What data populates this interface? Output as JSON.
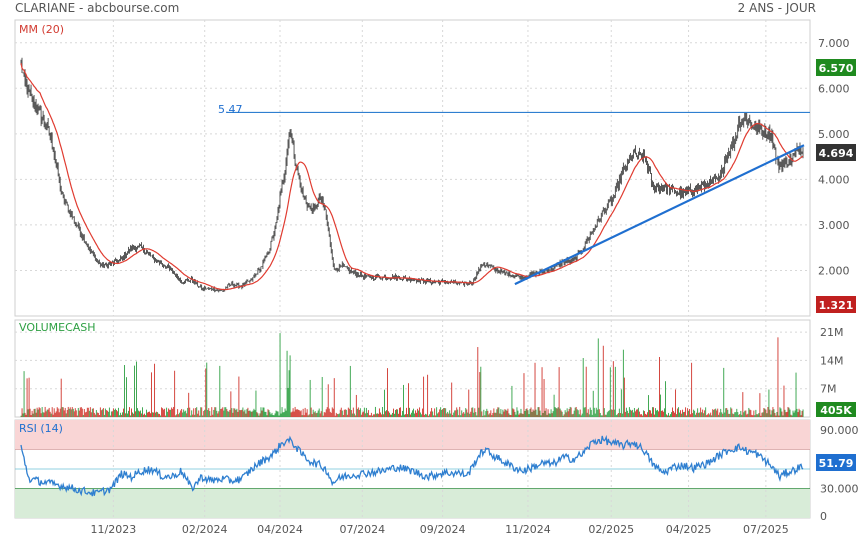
{
  "header": {
    "title": "CLARIANE - abcbourse.com",
    "period": "2 ANS - JOUR"
  },
  "colors": {
    "price": "#111111",
    "ma": "#e03c31",
    "support_line": "#1f6fd0",
    "resistance_line": "#2f7fd0",
    "rsi": "#2f7fd0",
    "vol_up": "#2ea043",
    "vol_down": "#d0342c",
    "rsi_over": "#f9d5d5",
    "rsi_under": "#d8ecd8",
    "badge_high": "#1f8a1f",
    "badge_low": "#c0201f",
    "badge_last": "#333333",
    "badge_rsi": "#1f6fd0"
  },
  "chart_data": [
    {
      "type": "candlestick",
      "panel": "price",
      "legend": "MM (20)",
      "ylim": [
        1.0,
        7.5
      ],
      "y_ticks": [
        "7.000",
        "6.000",
        "5.000",
        "4.000",
        "3.000",
        "2.000"
      ],
      "x_ticks": [
        "11/2023",
        "02/2024",
        "04/2024",
        "07/2024",
        "09/2024",
        "11/2024",
        "02/2025",
        "04/2025",
        "07/2025"
      ],
      "resistance": {
        "value": 5.47,
        "label": "5.47"
      },
      "trendline": {
        "from": [
          "02/2025 (approx.)",
          1.7
        ],
        "to": [
          "08/2025",
          4.75
        ]
      },
      "badges": {
        "high": "6.570",
        "last": "4.694",
        "low": "1.321"
      },
      "price_keypoints": [
        [
          0,
          6.5
        ],
        [
          4,
          6.1
        ],
        [
          12,
          5.7
        ],
        [
          25,
          5.2
        ],
        [
          32,
          4.7
        ],
        [
          40,
          3.7
        ],
        [
          48,
          3.3
        ],
        [
          58,
          2.9
        ],
        [
          68,
          2.45
        ],
        [
          80,
          2.1
        ],
        [
          90,
          2.15
        ],
        [
          100,
          2.25
        ],
        [
          110,
          2.5
        ],
        [
          120,
          2.5
        ],
        [
          130,
          2.3
        ],
        [
          140,
          2.15
        ],
        [
          150,
          2.0
        ],
        [
          160,
          1.75
        ],
        [
          170,
          1.8
        ],
        [
          180,
          1.6
        ],
        [
          190,
          1.6
        ],
        [
          200,
          1.55
        ],
        [
          210,
          1.7
        ],
        [
          220,
          1.65
        ],
        [
          230,
          1.8
        ],
        [
          240,
          2.1
        ],
        [
          248,
          2.5
        ],
        [
          254,
          3.0
        ],
        [
          258,
          3.6
        ],
        [
          262,
          4.1
        ],
        [
          265,
          4.6
        ],
        [
          268,
          5.2
        ],
        [
          270,
          4.8
        ],
        [
          275,
          4.2
        ],
        [
          280,
          3.7
        ],
        [
          286,
          3.4
        ],
        [
          292,
          3.3
        ],
        [
          298,
          3.6
        ],
        [
          303,
          3.3
        ],
        [
          308,
          2.6
        ],
        [
          312,
          2.0
        ],
        [
          320,
          2.1
        ],
        [
          330,
          1.95
        ],
        [
          345,
          1.85
        ],
        [
          360,
          1.85
        ],
        [
          375,
          1.85
        ],
        [
          390,
          1.8
        ],
        [
          410,
          1.75
        ],
        [
          425,
          1.75
        ],
        [
          440,
          1.7
        ],
        [
          450,
          1.75
        ],
        [
          460,
          2.15
        ],
        [
          470,
          2.05
        ],
        [
          480,
          1.95
        ],
        [
          500,
          1.85
        ],
        [
          515,
          1.95
        ],
        [
          530,
          2.05
        ],
        [
          540,
          2.2
        ],
        [
          550,
          2.2
        ],
        [
          560,
          2.5
        ],
        [
          570,
          2.9
        ],
        [
          580,
          3.3
        ],
        [
          590,
          3.6
        ],
        [
          600,
          4.2
        ],
        [
          610,
          4.55
        ],
        [
          622,
          4.45
        ],
        [
          630,
          3.8
        ],
        [
          640,
          3.85
        ],
        [
          650,
          3.75
        ],
        [
          660,
          3.7
        ],
        [
          672,
          3.8
        ],
        [
          684,
          3.9
        ],
        [
          696,
          4.0
        ],
        [
          702,
          4.5
        ],
        [
          710,
          4.8
        ],
        [
          716,
          5.3
        ],
        [
          722,
          5.35
        ],
        [
          730,
          5.15
        ],
        [
          740,
          5.05
        ],
        [
          748,
          4.95
        ],
        [
          754,
          4.3
        ],
        [
          760,
          4.35
        ],
        [
          768,
          4.45
        ],
        [
          776,
          4.69
        ]
      ]
    },
    {
      "type": "bar",
      "panel": "volume",
      "legend": "VOLUMECASH",
      "ylim": [
        0,
        24000000
      ],
      "y_ticks": [
        "21M",
        "14M",
        "7M"
      ],
      "last_value": "405K"
    },
    {
      "type": "line",
      "panel": "rsi",
      "legend": "RSI (14)",
      "ylim": [
        0,
        100
      ],
      "y_ticks": [
        "90.000",
        "30.000",
        "0"
      ],
      "over_level": 70,
      "under_level": 30,
      "last_value": "51.79",
      "rsi_keypoints": [
        [
          0,
          72
        ],
        [
          8,
          40
        ],
        [
          16,
          38
        ],
        [
          30,
          35
        ],
        [
          45,
          32
        ],
        [
          60,
          28
        ],
        [
          75,
          25
        ],
        [
          90,
          30
        ],
        [
          100,
          45
        ],
        [
          110,
          42
        ],
        [
          120,
          48
        ],
        [
          130,
          50
        ],
        [
          140,
          43
        ],
        [
          150,
          42
        ],
        [
          160,
          48
        ],
        [
          170,
          30
        ],
        [
          180,
          42
        ],
        [
          190,
          38
        ],
        [
          200,
          40
        ],
        [
          210,
          38
        ],
        [
          220,
          40
        ],
        [
          230,
          50
        ],
        [
          240,
          58
        ],
        [
          250,
          64
        ],
        [
          258,
          74
        ],
        [
          264,
          79
        ],
        [
          270,
          78
        ],
        [
          278,
          67
        ],
        [
          288,
          58
        ],
        [
          298,
          54
        ],
        [
          305,
          48
        ],
        [
          310,
          36
        ],
        [
          320,
          42
        ],
        [
          330,
          44
        ],
        [
          345,
          46
        ],
        [
          360,
          48
        ],
        [
          375,
          52
        ],
        [
          390,
          48
        ],
        [
          405,
          42
        ],
        [
          420,
          46
        ],
        [
          435,
          46
        ],
        [
          445,
          44
        ],
        [
          455,
          62
        ],
        [
          462,
          70
        ],
        [
          470,
          64
        ],
        [
          480,
          58
        ],
        [
          490,
          52
        ],
        [
          500,
          48
        ],
        [
          510,
          52
        ],
        [
          520,
          56
        ],
        [
          530,
          55
        ],
        [
          540,
          62
        ],
        [
          550,
          60
        ],
        [
          560,
          66
        ],
        [
          570,
          78
        ],
        [
          580,
          80
        ],
        [
          590,
          76
        ],
        [
          600,
          74
        ],
        [
          610,
          77
        ],
        [
          620,
          70
        ],
        [
          630,
          54
        ],
        [
          640,
          46
        ],
        [
          650,
          52
        ],
        [
          660,
          54
        ],
        [
          670,
          51
        ],
        [
          684,
          56
        ],
        [
          696,
          64
        ],
        [
          706,
          70
        ],
        [
          716,
          72
        ],
        [
          724,
          68
        ],
        [
          732,
          66
        ],
        [
          742,
          58
        ],
        [
          750,
          50
        ],
        [
          756,
          42
        ],
        [
          762,
          46
        ],
        [
          768,
          48
        ],
        [
          776,
          52
        ]
      ]
    }
  ]
}
